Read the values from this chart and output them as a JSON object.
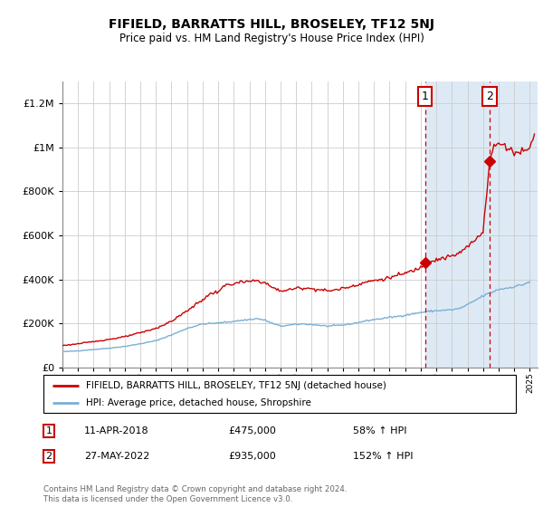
{
  "title": "FIFIELD, BARRATTS HILL, BROSELEY, TF12 5NJ",
  "subtitle": "Price paid vs. HM Land Registry's House Price Index (HPI)",
  "legend_label_red": "FIFIELD, BARRATTS HILL, BROSELEY, TF12 5NJ (detached house)",
  "legend_label_blue": "HPI: Average price, detached house, Shropshire",
  "annotation1_label": "1",
  "annotation1_date": "11-APR-2018",
  "annotation1_price": "£475,000",
  "annotation1_hpi": "58% ↑ HPI",
  "annotation2_label": "2",
  "annotation2_date": "27-MAY-2022",
  "annotation2_price": "£935,000",
  "annotation2_hpi": "152% ↑ HPI",
  "footer": "Contains HM Land Registry data © Crown copyright and database right 2024.\nThis data is licensed under the Open Government Licence v3.0.",
  "red_color": "#cc0000",
  "blue_color": "#7bafd4",
  "background_shaded": "#ddeaf5",
  "vline_color": "#cc0000",
  "annotation_box_color": "#cc0000",
  "ylim": [
    0,
    1300000
  ],
  "yticks": [
    0,
    200000,
    400000,
    600000,
    800000,
    1000000,
    1200000
  ],
  "ytick_labels": [
    "£0",
    "£200K",
    "£400K",
    "£600K",
    "£800K",
    "£1M",
    "£1.2M"
  ],
  "sale1_year": 2018.28,
  "sale1_value": 475000,
  "sale2_year": 2022.42,
  "sale2_value": 935000,
  "vline1_year": 2018.28,
  "vline2_year": 2022.42,
  "shaded_start": 2018.28,
  "xlim_start": 1995.0,
  "xlim_end": 2025.5
}
